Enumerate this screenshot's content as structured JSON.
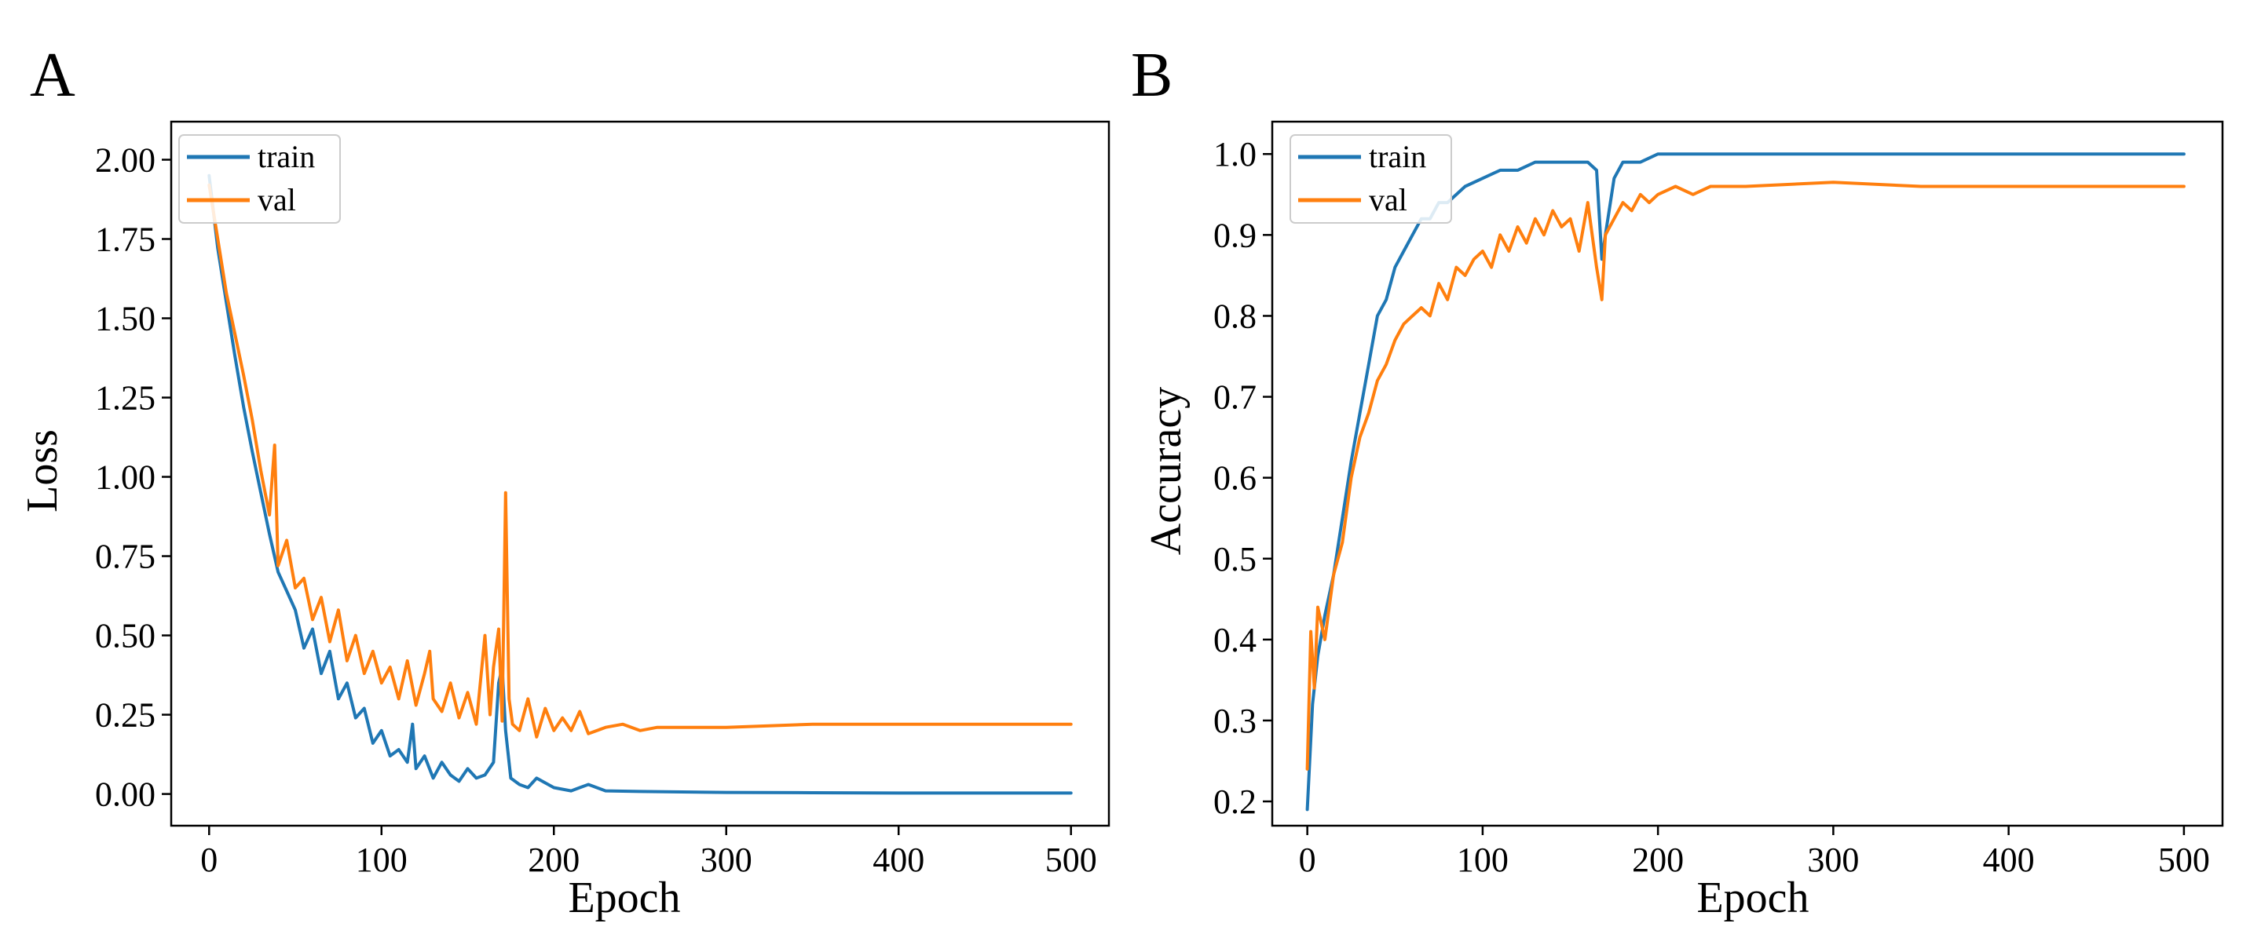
{
  "colors": {
    "train": "#1f77b4",
    "val": "#ff7f0e"
  },
  "chart_data": [
    {
      "panel": "A",
      "type": "line",
      "title": "",
      "xlabel": "Epoch",
      "ylabel": "Loss",
      "xlim": [
        -22,
        522
      ],
      "ylim": [
        -0.1,
        2.12
      ],
      "xticks": [
        0,
        100,
        200,
        300,
        400,
        500
      ],
      "xtick_labels": [
        "0",
        "100",
        "200",
        "300",
        "400",
        "500"
      ],
      "yticks": [
        0.0,
        0.25,
        0.5,
        0.75,
        1.0,
        1.25,
        1.5,
        1.75,
        2.0
      ],
      "ytick_labels": [
        "0.00",
        "0.25",
        "0.50",
        "0.75",
        "1.00",
        "1.25",
        "1.50",
        "1.75",
        "2.00"
      ],
      "legend": {
        "location": "upper-left",
        "entries": [
          "train",
          "val"
        ]
      },
      "series": [
        {
          "name": "train",
          "x": [
            0,
            5,
            10,
            15,
            20,
            25,
            30,
            35,
            40,
            45,
            50,
            55,
            60,
            65,
            70,
            75,
            80,
            85,
            90,
            95,
            100,
            105,
            110,
            115,
            118,
            120,
            125,
            130,
            135,
            140,
            145,
            150,
            155,
            160,
            165,
            168,
            170,
            172,
            175,
            180,
            185,
            190,
            200,
            210,
            215,
            220,
            230,
            250,
            300,
            350,
            400,
            450,
            500
          ],
          "values": [
            1.95,
            1.72,
            1.55,
            1.38,
            1.22,
            1.08,
            0.95,
            0.82,
            0.7,
            0.64,
            0.58,
            0.46,
            0.52,
            0.38,
            0.45,
            0.3,
            0.35,
            0.24,
            0.27,
            0.16,
            0.2,
            0.12,
            0.14,
            0.1,
            0.22,
            0.08,
            0.12,
            0.05,
            0.1,
            0.06,
            0.04,
            0.08,
            0.05,
            0.06,
            0.1,
            0.35,
            0.4,
            0.2,
            0.05,
            0.03,
            0.02,
            0.05,
            0.02,
            0.01,
            0.02,
            0.03,
            0.01,
            0.008,
            0.005,
            0.004,
            0.003,
            0.003,
            0.003
          ]
        },
        {
          "name": "val",
          "x": [
            0,
            5,
            10,
            15,
            20,
            25,
            30,
            35,
            38,
            40,
            45,
            50,
            55,
            60,
            65,
            70,
            75,
            80,
            85,
            90,
            95,
            100,
            105,
            110,
            115,
            120,
            125,
            128,
            130,
            135,
            140,
            145,
            150,
            155,
            160,
            163,
            165,
            168,
            170,
            172,
            174,
            176,
            180,
            185,
            190,
            195,
            200,
            205,
            210,
            215,
            220,
            230,
            240,
            250,
            260,
            280,
            300,
            350,
            400,
            450,
            500
          ],
          "values": [
            1.92,
            1.75,
            1.58,
            1.45,
            1.32,
            1.18,
            1.02,
            0.88,
            1.1,
            0.72,
            0.8,
            0.65,
            0.68,
            0.55,
            0.62,
            0.48,
            0.58,
            0.42,
            0.5,
            0.38,
            0.45,
            0.35,
            0.4,
            0.3,
            0.42,
            0.28,
            0.38,
            0.45,
            0.3,
            0.26,
            0.35,
            0.24,
            0.32,
            0.22,
            0.5,
            0.25,
            0.4,
            0.52,
            0.23,
            0.95,
            0.3,
            0.22,
            0.2,
            0.3,
            0.18,
            0.27,
            0.2,
            0.24,
            0.2,
            0.26,
            0.19,
            0.21,
            0.22,
            0.2,
            0.21,
            0.21,
            0.21,
            0.22,
            0.22,
            0.22,
            0.22
          ]
        }
      ]
    },
    {
      "panel": "B",
      "type": "line",
      "title": "",
      "xlabel": "Epoch",
      "ylabel": "Accuracy",
      "xlim": [
        -20,
        522
      ],
      "ylim": [
        0.17,
        1.04
      ],
      "xticks": [
        0,
        100,
        200,
        300,
        400,
        500
      ],
      "xtick_labels": [
        "0",
        "100",
        "200",
        "300",
        "400",
        "500"
      ],
      "yticks": [
        0.2,
        0.3,
        0.4,
        0.5,
        0.6,
        0.7,
        0.8,
        0.9,
        1.0
      ],
      "ytick_labels": [
        "0.2",
        "0.3",
        "0.4",
        "0.5",
        "0.6",
        "0.7",
        "0.8",
        "0.9",
        "1.0"
      ],
      "legend": {
        "location": "upper-left",
        "entries": [
          "train",
          "val"
        ]
      },
      "series": [
        {
          "name": "train",
          "x": [
            0,
            3,
            6,
            10,
            15,
            20,
            25,
            30,
            35,
            40,
            45,
            50,
            55,
            60,
            65,
            70,
            75,
            80,
            90,
            100,
            110,
            120,
            130,
            140,
            150,
            160,
            165,
            168,
            170,
            175,
            180,
            190,
            200,
            210,
            220,
            250,
            300,
            350,
            400,
            450,
            500
          ],
          "values": [
            0.19,
            0.32,
            0.38,
            0.43,
            0.48,
            0.55,
            0.62,
            0.68,
            0.74,
            0.8,
            0.82,
            0.86,
            0.88,
            0.9,
            0.92,
            0.92,
            0.94,
            0.94,
            0.96,
            0.97,
            0.98,
            0.98,
            0.99,
            0.99,
            0.99,
            0.99,
            0.98,
            0.87,
            0.9,
            0.97,
            0.99,
            0.99,
            1.0,
            1.0,
            1.0,
            1.0,
            1.0,
            1.0,
            1.0,
            1.0,
            1.0
          ]
        },
        {
          "name": "val",
          "x": [
            0,
            2,
            4,
            6,
            10,
            15,
            20,
            25,
            30,
            35,
            40,
            45,
            50,
            55,
            60,
            65,
            70,
            75,
            80,
            85,
            90,
            95,
            100,
            105,
            110,
            115,
            120,
            125,
            130,
            135,
            140,
            145,
            150,
            155,
            160,
            165,
            168,
            170,
            175,
            180,
            185,
            190,
            195,
            200,
            210,
            220,
            230,
            240,
            250,
            300,
            350,
            400,
            450,
            500
          ],
          "values": [
            0.24,
            0.41,
            0.34,
            0.44,
            0.4,
            0.48,
            0.52,
            0.6,
            0.65,
            0.68,
            0.72,
            0.74,
            0.77,
            0.79,
            0.8,
            0.81,
            0.8,
            0.84,
            0.82,
            0.86,
            0.85,
            0.87,
            0.88,
            0.86,
            0.9,
            0.88,
            0.91,
            0.89,
            0.92,
            0.9,
            0.93,
            0.91,
            0.92,
            0.88,
            0.94,
            0.86,
            0.82,
            0.9,
            0.92,
            0.94,
            0.93,
            0.95,
            0.94,
            0.95,
            0.96,
            0.95,
            0.96,
            0.96,
            0.96,
            0.965,
            0.96,
            0.96,
            0.96,
            0.96
          ]
        }
      ]
    }
  ]
}
